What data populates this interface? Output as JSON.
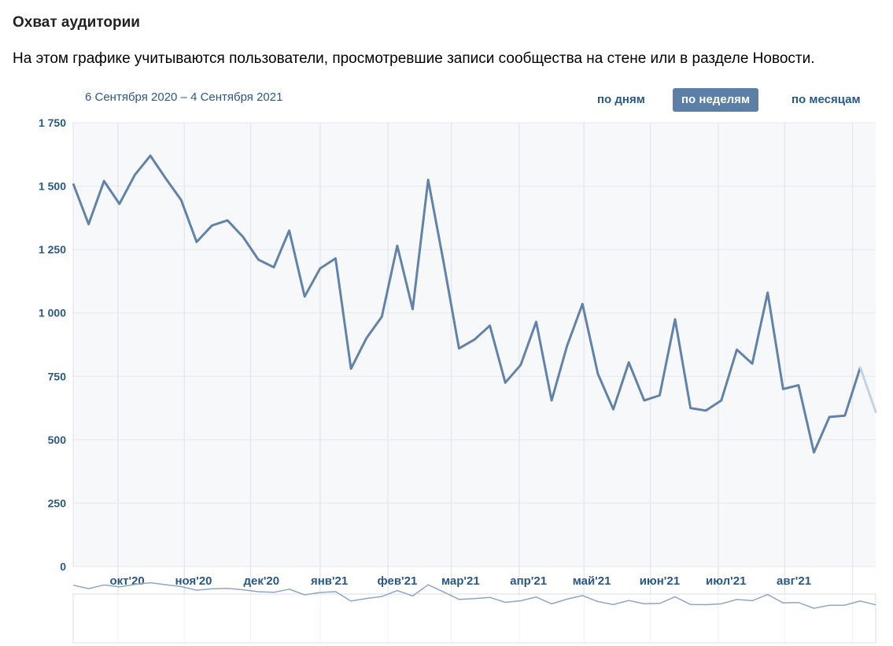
{
  "header": {
    "title": "Охват аудитории",
    "description": "На этом графике учитываются пользователи, просмотревшие записи сообщества на стене или в разделе Новости.",
    "date_range": "6 Сентября 2020 – 4 Сентября 2021"
  },
  "period_tabs": [
    {
      "label": "по дням",
      "active": false
    },
    {
      "label": "по неделям",
      "active": true
    },
    {
      "label": "по месяцам",
      "active": false
    }
  ],
  "colors": {
    "line": "#6283a9",
    "line_faded": "#c5d2e2",
    "grid": "#e7e8ec",
    "plot_bg": "#f7f8fa",
    "accent": "#5b7fa6",
    "text": "#2a5885"
  },
  "chart_data": {
    "type": "line",
    "title": "",
    "xlabel": "",
    "ylabel": "",
    "ylim": [
      0,
      1750
    ],
    "y_ticks": [
      0,
      250,
      500,
      750,
      1000,
      1250,
      1500,
      1750
    ],
    "y_tick_labels": [
      "0",
      "250",
      "500",
      "750",
      "1 000",
      "1 250",
      "1 500",
      "1 750"
    ],
    "x_tick_labels": [
      "окт'20",
      "ноя'20",
      "дек'20",
      "янв'21",
      "фев'21",
      "мар'21",
      "апр'21",
      "май'21",
      "июн'21",
      "июл'21",
      "авг'21"
    ],
    "x_tick_weeks": [
      3.5,
      7.8,
      12.2,
      16.6,
      21.0,
      25.1,
      29.5,
      33.6,
      38.0,
      42.3,
      46.7
    ],
    "grid": true,
    "navigator": true,
    "series": [
      {
        "values": [
          1510,
          1350,
          1520,
          1430,
          1545,
          1620,
          1530,
          1445,
          1280,
          1345,
          1365,
          1300,
          1210,
          1180,
          1325,
          1065,
          1175,
          1215,
          780,
          900,
          985,
          1265,
          1015,
          1525,
          1200,
          860,
          895,
          950,
          725,
          795,
          965,
          655,
          870,
          1035,
          760,
          620,
          805,
          655,
          675,
          975,
          625,
          615,
          655,
          855,
          800,
          1080,
          700,
          715,
          450,
          590,
          595,
          785
        ],
        "partial_last": 610
      }
    ]
  }
}
